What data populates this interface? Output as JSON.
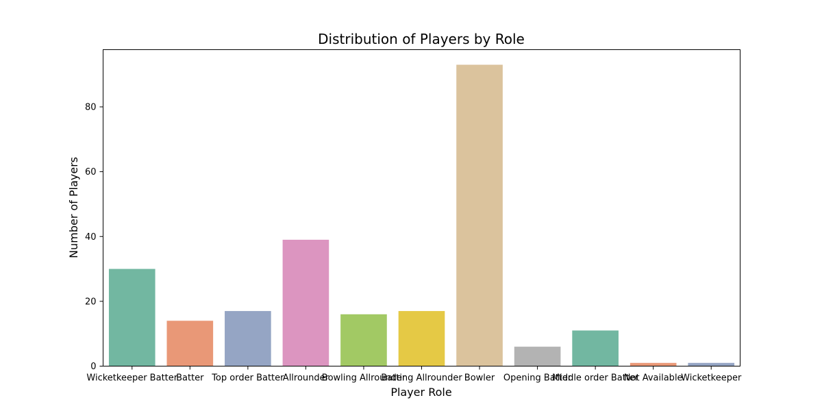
{
  "chart_data": {
    "type": "bar",
    "title": "Distribution of Players by Role",
    "xlabel": "Player Role",
    "ylabel": "Number of Players",
    "categories": [
      "Wicketkeeper Batter",
      "Batter",
      "Top order Batter",
      "Allrounder",
      "Bowling Allrounder",
      "Batting Allrounder",
      "Bowler",
      "Opening Batter",
      "Middle order Batter",
      "Not Available",
      "Wicketkeeper"
    ],
    "values": [
      30,
      14,
      17,
      39,
      16,
      17,
      93,
      6,
      11,
      1,
      1
    ],
    "colors": [
      "#72b7a1",
      "#e99877",
      "#95a5c4",
      "#dc95c0",
      "#a2c964",
      "#e5c945",
      "#dbc39d",
      "#b3b3b3",
      "#72b7a1",
      "#e99877",
      "#95a5c4"
    ],
    "yticks": [
      0,
      20,
      40,
      60,
      80
    ],
    "ylim": [
      0,
      97.65
    ],
    "grid": false,
    "legend": "none"
  }
}
